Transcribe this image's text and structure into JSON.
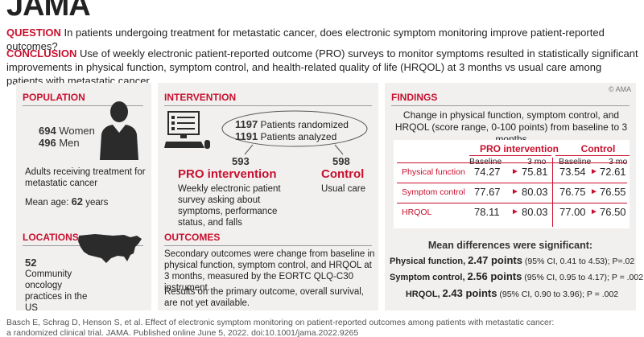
{
  "header": {
    "journal": "JAMA",
    "question_label": "QUESTION",
    "question_text": "In patients undergoing treatment for metastatic cancer, does electronic symptom monitoring improve patient-reported outcomes?",
    "conclusion_label": "CONCLUSION",
    "conclusion_text": "Use of weekly electronic patient-reported outcome (PRO) surveys to monitor symptoms resulted in statistically significant improvements in physical function, symptom control, and health-related quality of life (HRQOL) at 3 months vs usual care among patients with metastatic cancer.",
    "copyright": "© AMA"
  },
  "population": {
    "title": "POPULATION",
    "women_count": "694",
    "women_label": "Women",
    "men_count": "496",
    "men_label": "Men",
    "description": "Adults receiving treatment for metastatic cancer",
    "mean_age_label": "Mean age:",
    "mean_age_value": "62",
    "mean_age_unit": "years"
  },
  "locations": {
    "title": "LOCATIONS",
    "count": "52",
    "description": "Community oncology practices in the US"
  },
  "intervention": {
    "title": "INTERVENTION",
    "randomized_count": "1197",
    "randomized_label": "Patients randomized",
    "analyzed_count": "1191",
    "analyzed_label": "Patients analyzed",
    "pro_count": "593",
    "pro_title": "PRO intervention",
    "pro_desc": "Weekly electronic patient survey asking about symptoms, performance status, and falls",
    "control_count": "598",
    "control_title": "Control",
    "control_desc": "Usual care"
  },
  "outcomes": {
    "title": "OUTCOMES",
    "text1": "Secondary outcomes were change from baseline in physical function, symptom control, and HRQOL at 3 months, measured by the EORTC QLQ-C30 instrument.",
    "text2": "Results on the primary outcome, overall survival, are not yet available."
  },
  "findings": {
    "title": "FINDINGS",
    "subtitle": "Change in physical function, symptom control, and HRQOL (score range, 0-100 points) from baseline to 3 months",
    "group_pro": "PRO intervention",
    "group_control": "Control",
    "col_baseline": "Baseline",
    "col_3mo": "3 mo",
    "rows": [
      {
        "label": "Physical function",
        "pro_base": "74.27",
        "pro_3mo": "75.81",
        "ctl_base": "73.54",
        "ctl_3mo": "72.61"
      },
      {
        "label": "Symptom control",
        "pro_base": "77.67",
        "pro_3mo": "80.03",
        "ctl_base": "76.75",
        "ctl_3mo": "76.55"
      },
      {
        "label": "HRQOL",
        "pro_base": "78.11",
        "pro_3mo": "80.03",
        "ctl_base": "77.00",
        "ctl_3mo": "76.50"
      }
    ],
    "arrow": "►",
    "mean_diff_title": "Mean differences were significant:",
    "diffs": [
      {
        "label": "Physical function,",
        "value": "2.47 points",
        "ci": "(95% CI, 0.41 to 4.53); P=.02"
      },
      {
        "label": "Symptom control,",
        "value": "2.56 points",
        "ci": "(95% CI, 0.95 to 4.17); P = .002"
      },
      {
        "label": "HRQOL,",
        "value": "2.43 points",
        "ci": "(95% CI, 0.90 to 3.96); P = .002"
      }
    ]
  },
  "citation": {
    "line1": "Basch E, Schrag D, Henson S, et al. Effect of electronic symptom monitoring on patient-reported outcomes among patients with metastatic cancer:",
    "line2": "a randomized clinical trial. JAMA. Published online June 5, 2022. doi:10.1001/jama.2022.9265"
  },
  "colors": {
    "accent": "#c8102e",
    "panel": "#f2f0ef",
    "icon": "#333333"
  }
}
